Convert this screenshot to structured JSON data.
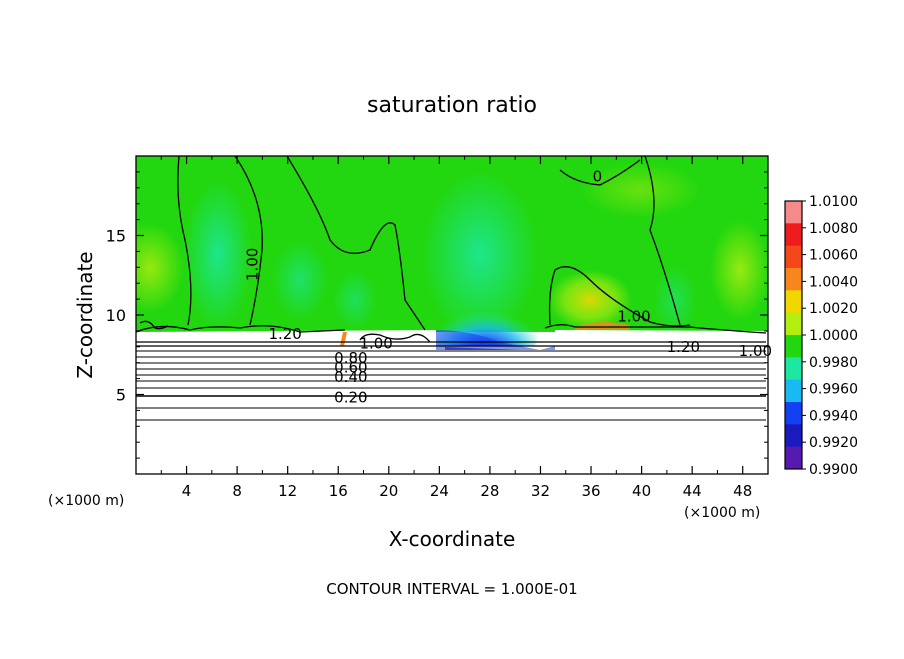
{
  "chart_data": {
    "type": "heatmap",
    "title": "saturation ratio",
    "xlabel": "X-coordinate",
    "ylabel": "Z-coordinate",
    "x_unit_left": "(×1000 m)",
    "x_unit_right": "(×1000 m)",
    "xlim": [
      0,
      50
    ],
    "ylim": [
      0,
      20
    ],
    "x_ticks": [
      4,
      8,
      12,
      16,
      20,
      24,
      28,
      32,
      36,
      40,
      44,
      48
    ],
    "y_ticks": [
      5,
      10,
      15
    ],
    "footer": "CONTOUR INTERVAL = 1.000E-01",
    "colorbar": {
      "levels": [
        "1.0100",
        "1.0080",
        "1.0060",
        "1.0040",
        "1.0020",
        "1.0000",
        "0.9980",
        "0.9960",
        "0.9940",
        "0.9920",
        "0.9900"
      ],
      "colors": [
        "#f58a8a",
        "#ee1c1c",
        "#f4471a",
        "#f7861e",
        "#f1d700",
        "#b4ee10",
        "#22d70f",
        "#1de8a2",
        "#19b9f2",
        "#1340f0",
        "#1a1abf",
        "#561ab0"
      ]
    },
    "contour_labels": [
      {
        "text": "1.00",
        "x": 9.6,
        "z": 13.5
      },
      {
        "text": "1.00",
        "x": 39.4,
        "z": 9.9
      },
      {
        "text": "1.00",
        "x": 49.0,
        "z": 7.75
      },
      {
        "text": "1.00",
        "x": 19.0,
        "z": 8.2
      },
      {
        "text": "0",
        "x": 36.5,
        "z": 18.7
      },
      {
        "text": "1.20",
        "x": 11.8,
        "z": 8.8
      },
      {
        "text": "1.20",
        "x": 43.3,
        "z": 8.0
      },
      {
        "text": "0.80",
        "x": 17.0,
        "z": 7.3
      },
      {
        "text": "0.60",
        "x": 17.0,
        "z": 6.7
      },
      {
        "text": "0.40",
        "x": 17.0,
        "z": 6.1
      },
      {
        "text": "0.20",
        "x": 17.0,
        "z": 4.8
      }
    ]
  }
}
